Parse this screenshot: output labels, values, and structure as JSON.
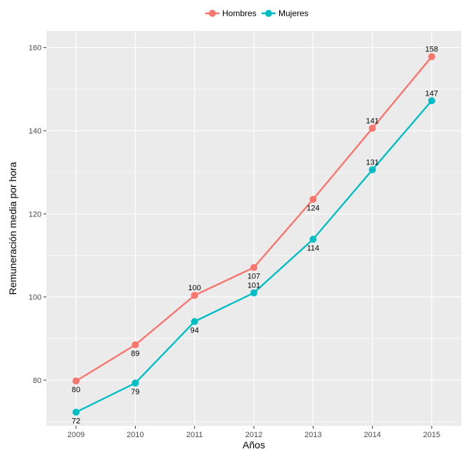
{
  "chart_data": {
    "type": "line",
    "xlabel": "Años",
    "ylabel": "Remuneración media por hora",
    "x": [
      "2009",
      "2010",
      "2011",
      "2012",
      "2013",
      "2014",
      "2015"
    ],
    "ylim": [
      69,
      164
    ],
    "yticks": [
      80,
      100,
      120,
      140,
      160
    ],
    "grid": true,
    "legend_position": "top",
    "series": [
      {
        "name": "Hombres",
        "color": "#F8766D",
        "values": [
          79.8,
          88.5,
          100.4,
          107.1,
          123.5,
          140.6,
          157.8
        ],
        "labels": [
          "80",
          "89",
          "100",
          "107",
          "124",
          "141",
          "158"
        ]
      },
      {
        "name": "Mujeres",
        "color": "#00BFC4",
        "values": [
          72.3,
          79.3,
          94.1,
          101.0,
          113.9,
          130.6,
          147.2
        ],
        "labels": [
          "72",
          "79",
          "94",
          "101",
          "114",
          "131",
          "147"
        ]
      }
    ],
    "panel_color": "#EBEBEB",
    "grid_color": "#FFFFFF"
  }
}
